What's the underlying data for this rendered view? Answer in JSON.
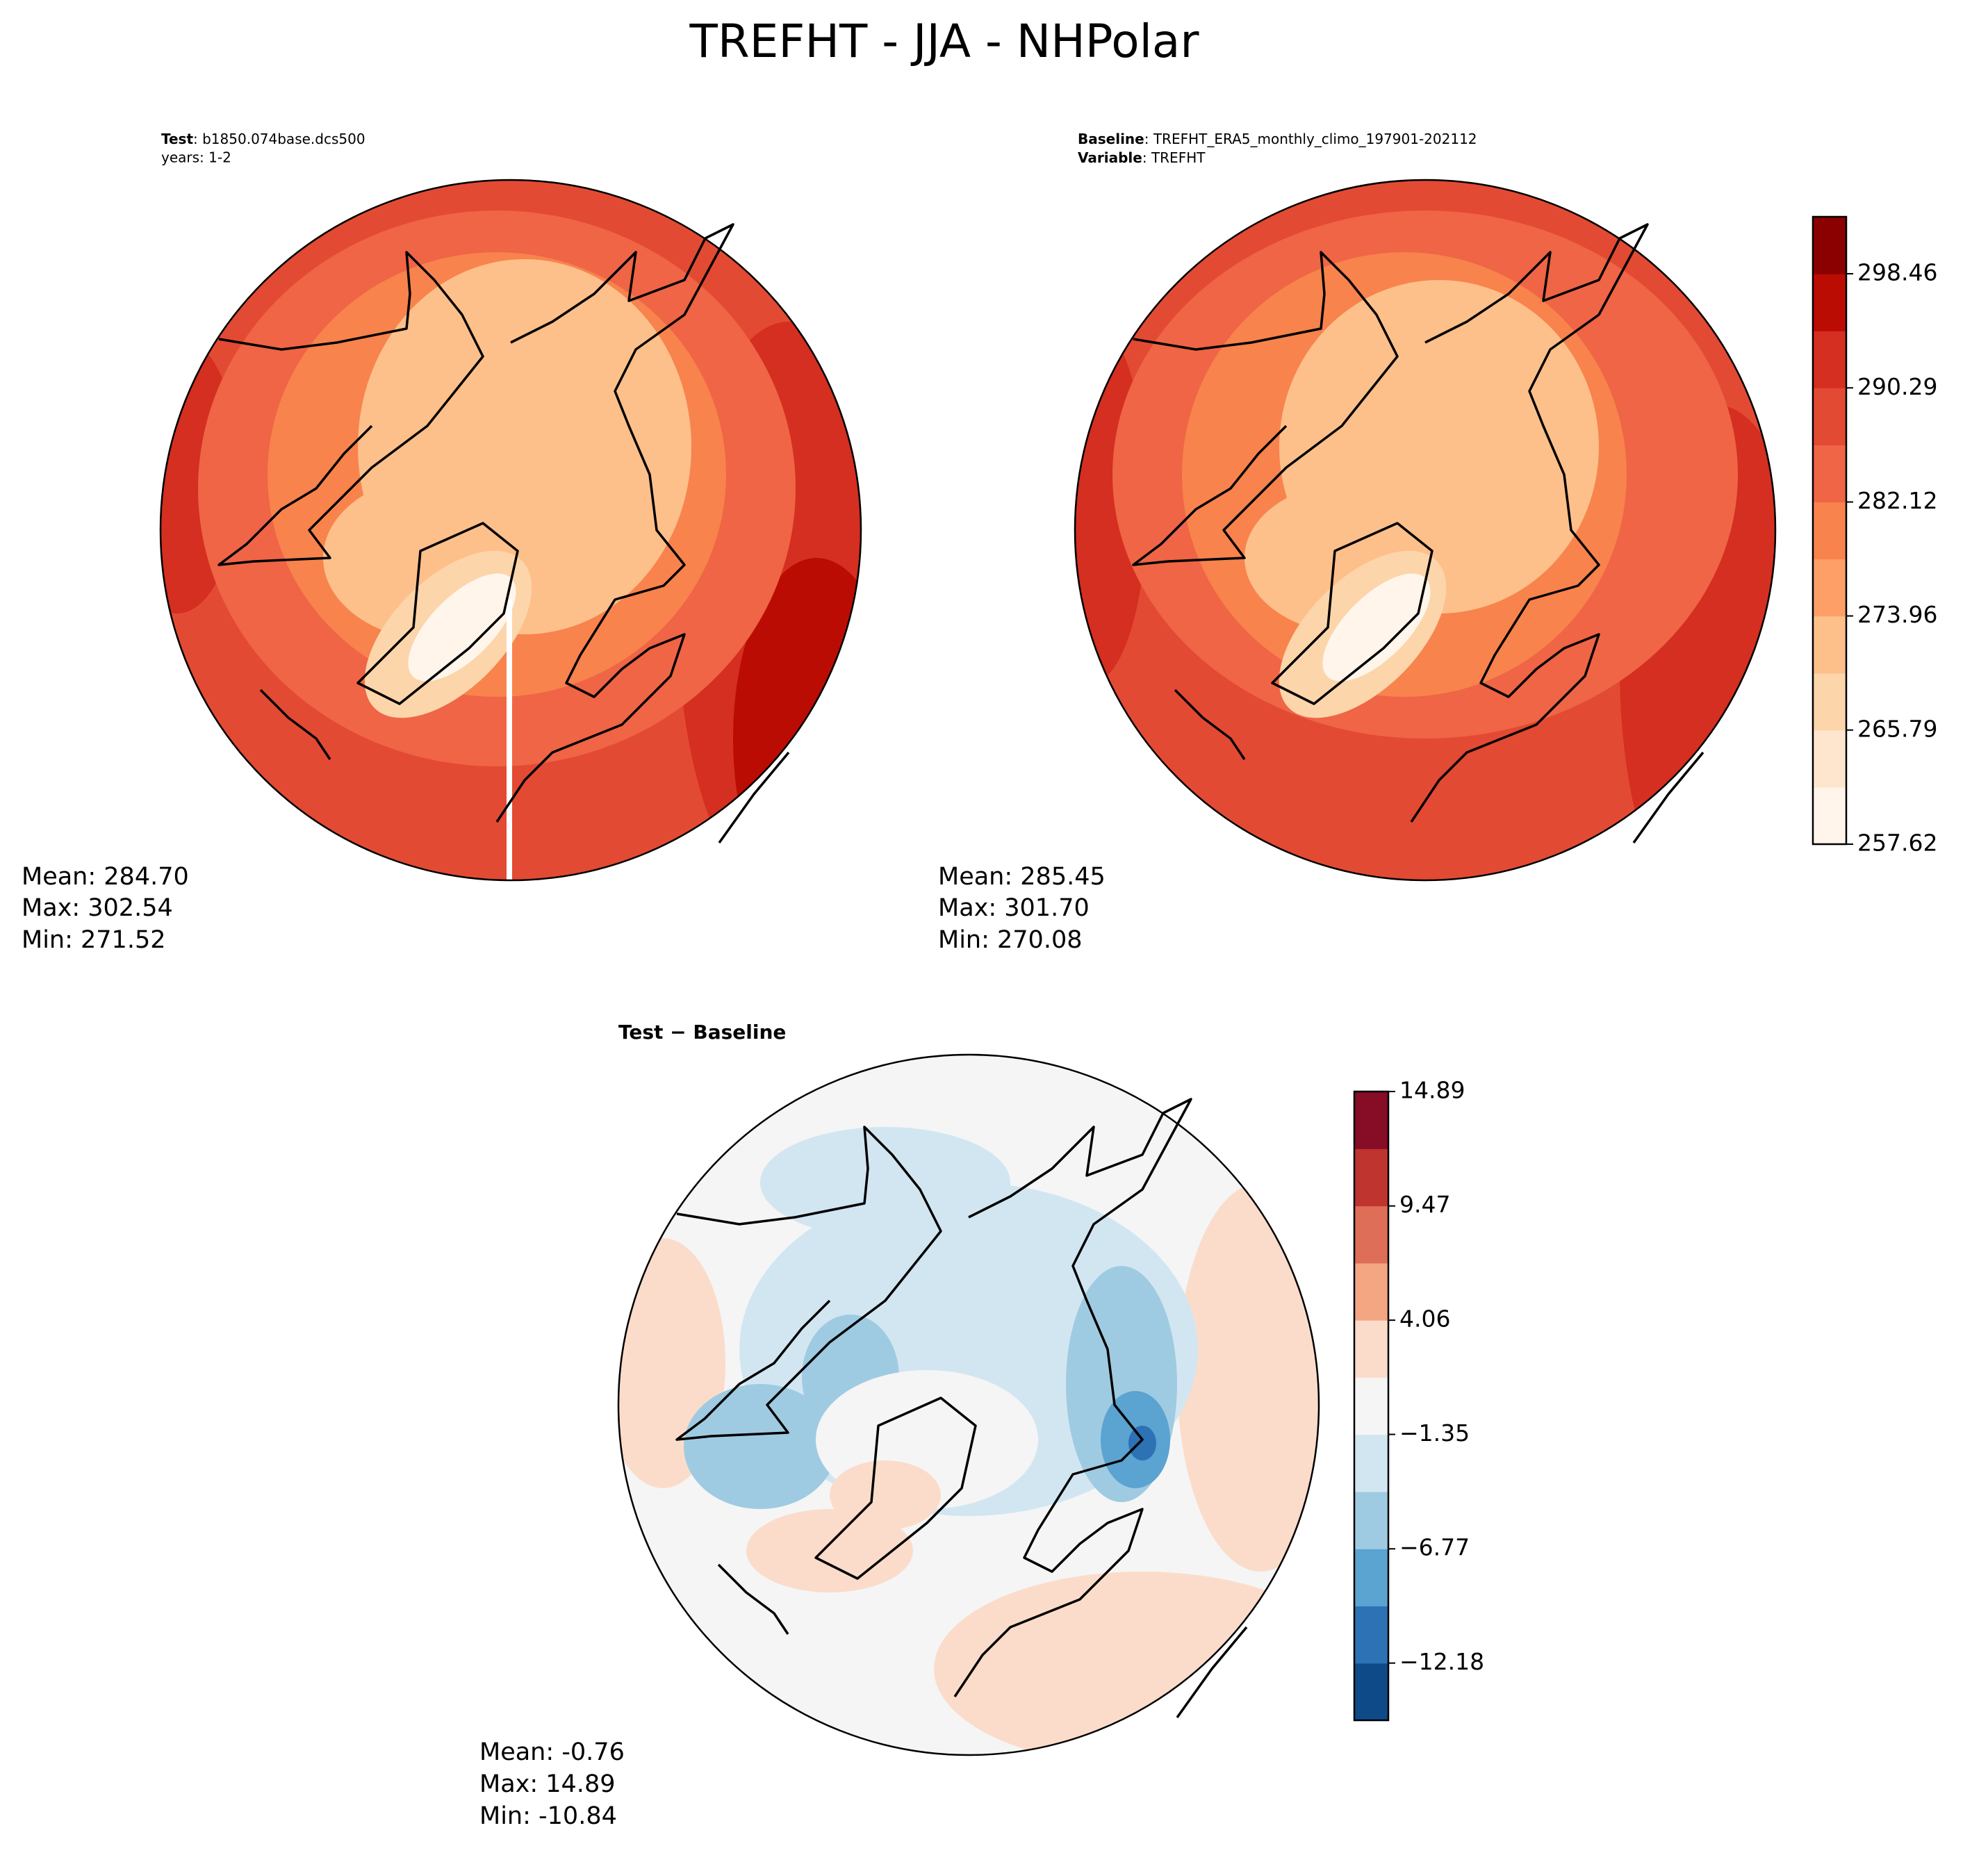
{
  "title": "TREFHT - JJA - NHPolar",
  "test": {
    "label": "Test",
    "text": ": b1850.074base.dcs500",
    "subtext": "years: 1-2",
    "stats": [
      "Mean: 284.70",
      "Max: 302.54",
      "Min: 271.52"
    ]
  },
  "baseline": {
    "label": "Baseline",
    "text": ": TREFHT_ERA5_monthly_climo_197901-202112",
    "label2": "Variable",
    "text2": ": TREFHT",
    "stats": [
      "Mean: 285.45",
      "Max: 301.70",
      "Min: 270.08"
    ]
  },
  "difference": {
    "label": "Test − Baseline",
    "stats": [
      "Mean: -0.76",
      "Max: 14.89",
      "Min: -10.84"
    ]
  },
  "colorbar": {
    "ylim": [
      257.62,
      302.54
    ],
    "yticks": [
      257.62,
      265.79,
      273.96,
      282.12,
      290.29,
      298.46
    ],
    "colors": [
      "#fff5eb",
      "#fee6ce",
      "#fdd5ab",
      "#fdc08a",
      "#fd9f67",
      "#f8834d",
      "#ef6545",
      "#e34a33",
      "#d42f20",
      "#bb0c04",
      "#8b0000"
    ]
  },
  "diff_colorbar": {
    "ylim": [
      -14.89,
      14.89
    ],
    "yticks": [
      {
        "value": -12.18,
        "label": "−12.18"
      },
      {
        "value": -6.77,
        "label": "−6.77"
      },
      {
        "value": -1.35,
        "label": "−1.35"
      },
      4.06,
      9.47,
      14.89
    ],
    "colors": [
      "#0d4a87",
      "#2c72b5",
      "#5ba3d0",
      "#9fcbe2",
      "#d2e6f1",
      "#f5f5f5",
      "#fbdccb",
      "#f4a582",
      "#de6e57",
      "#c0342f",
      "#870c26"
    ]
  }
}
